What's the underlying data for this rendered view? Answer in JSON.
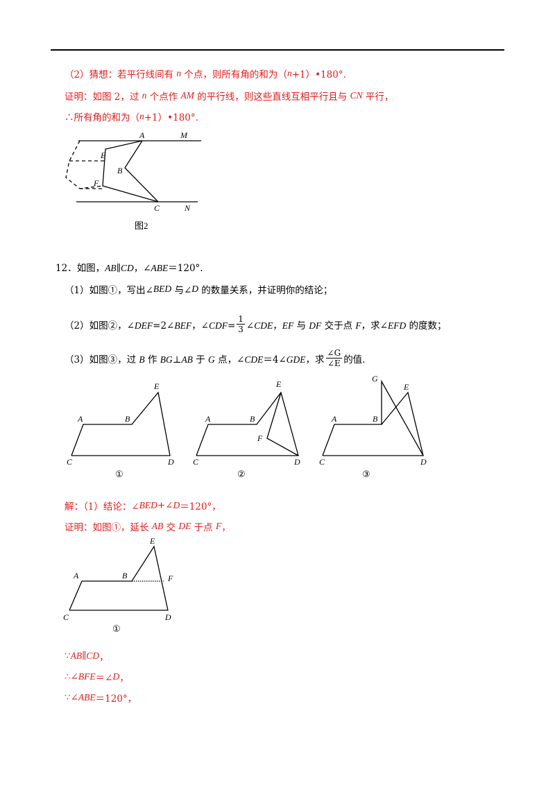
{
  "solution_continued": {
    "lines": [
      [
        "（2）猜想：若平行线间有 ",
        "n",
        " 个点，则所有角的和为（",
        "n",
        "+1）•180°."
      ],
      [
        "证明：如图 2，过 ",
        "n",
        " 个点作 ",
        "AM",
        " 的平行线，则这些直线互相平行且与 ",
        "CN",
        " 平行，"
      ],
      [
        "∴所有角的和为（",
        "n",
        "+1）•180°."
      ]
    ],
    "figure": {
      "labels": [
        "A",
        "M",
        "E",
        "B",
        "F",
        "C",
        "N"
      ],
      "caption": "图2"
    }
  },
  "problem": {
    "number": "12．",
    "statement": [
      "如图，",
      "AB",
      "∥",
      "CD",
      "，∠",
      "ABE",
      "＝120°."
    ],
    "part1": [
      "（1）如图①，写出∠",
      "BED",
      " 与∠",
      "D",
      " 的数量关系，并证明你的结论；"
    ],
    "part2": {
      "before": [
        "（2）如图②，∠",
        "DEF",
        "=2∠",
        "BEF",
        "，∠",
        "CDF",
        "="
      ],
      "fraction": {
        "numerator": "1",
        "denominator": "3"
      },
      "after": [
        "∠",
        "CDE",
        "，",
        "EF",
        " 与 ",
        "DF",
        " 交于点 ",
        "F",
        "，求∠",
        "EFD",
        " 的度数；"
      ]
    },
    "part3": {
      "before": [
        "（3）如图③，过 ",
        "B",
        " 作 ",
        "BG",
        "⊥",
        "AB",
        " 于 ",
        "G",
        " 点，∠",
        "CDE",
        "＝4∠",
        "GDE",
        "，求"
      ],
      "fraction": {
        "numerator": "∠G",
        "denominator": "∠E"
      },
      "after": [
        "的值."
      ]
    },
    "figures": [
      {
        "labels": [
          "A",
          "B",
          "E",
          "C",
          "D"
        ],
        "caption": "①"
      },
      {
        "labels": [
          "A",
          "B",
          "E",
          "F",
          "C",
          "D"
        ],
        "caption": "②"
      },
      {
        "labels": [
          "A",
          "B",
          "G",
          "E",
          "C",
          "D"
        ],
        "caption": "③"
      }
    ]
  },
  "solution": {
    "lines": [
      [
        "解：（1）结论：∠",
        "BED",
        "+∠",
        "D",
        "＝120°，"
      ],
      [
        "证明：如图①，延长 ",
        "AB",
        " 交 ",
        "DE",
        " 于点 ",
        "F",
        "，"
      ]
    ],
    "figure": {
      "labels": [
        "A",
        "B",
        "E",
        "F",
        "C",
        "D"
      ],
      "caption": "①"
    },
    "steps": [
      [
        "∵",
        "AB",
        "∥",
        "CD",
        "，"
      ],
      [
        "∴∠",
        "BFE",
        "＝∠",
        "D",
        "，"
      ],
      [
        "∵∠",
        "ABE",
        "＝120°，"
      ]
    ]
  }
}
